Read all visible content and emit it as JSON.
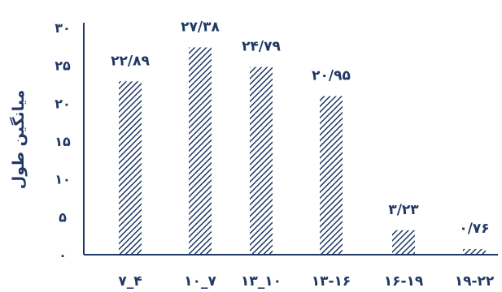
{
  "chart_data": {
    "type": "bar",
    "categories": [
      "۴_۷",
      "۷_۱۰",
      "۱۰_۱۳",
      "۱۳-۱۶",
      "۱۶-۱۹",
      "۱۹-۲۲"
    ],
    "values": [
      22.89,
      27.38,
      24.79,
      20.95,
      3.23,
      0.76
    ],
    "value_labels": [
      "۲۲/۸۹",
      "۲۷/۳۸",
      "۲۴/۷۹",
      "۲۰/۹۵",
      "۳/۲۳",
      "۰/۷۶"
    ],
    "y_ticks": [
      0,
      5,
      10,
      15,
      20,
      25,
      30
    ],
    "y_tick_labels": [
      "۰",
      "۵",
      "۱۰",
      "۱۵",
      "۲۰",
      "۲۵",
      "۳۰"
    ],
    "ylim": [
      0,
      30
    ],
    "ylabel": "میانگین طول",
    "xlabel": "",
    "title": "",
    "grid": false,
    "bar_pattern": "diagonal-hatch",
    "colors": {
      "bar": "#1f3864",
      "axis": "#1f3864",
      "text": "#1f3864"
    }
  }
}
